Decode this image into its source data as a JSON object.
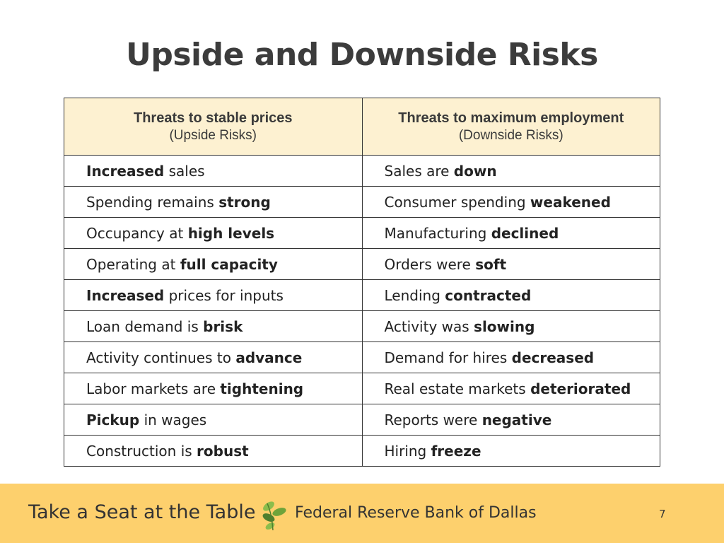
{
  "title": "Upside and Downside Risks",
  "table": {
    "headers": [
      {
        "main": "Threats to stable prices",
        "sub": "(Upside Risks)"
      },
      {
        "main": "Threats to maximum employment",
        "sub": "(Downside Risks)"
      }
    ],
    "rows": [
      [
        {
          "pre": "",
          "bold": "Increased",
          "post": " sales"
        },
        {
          "pre": "Sales are ",
          "bold": "down",
          "post": ""
        }
      ],
      [
        {
          "pre": "Spending remains ",
          "bold": "strong",
          "post": ""
        },
        {
          "pre": "Consumer spending ",
          "bold": "weakened",
          "post": ""
        }
      ],
      [
        {
          "pre": "Occupancy at ",
          "bold": "high levels",
          "post": ""
        },
        {
          "pre": "Manufacturing ",
          "bold": "declined",
          "post": ""
        }
      ],
      [
        {
          "pre": "Operating at ",
          "bold": "full capacity",
          "post": ""
        },
        {
          "pre": "Orders were ",
          "bold": "soft",
          "post": ""
        }
      ],
      [
        {
          "pre": "",
          "bold": "Increased",
          "post": " prices for inputs"
        },
        {
          "pre": "Lending ",
          "bold": "contracted",
          "post": ""
        }
      ],
      [
        {
          "pre": "Loan demand is ",
          "bold": "brisk",
          "post": ""
        },
        {
          "pre": "Activity was ",
          "bold": "slowing",
          "post": ""
        }
      ],
      [
        {
          "pre": "Activity continues to ",
          "bold": "advance",
          "post": ""
        },
        {
          "pre": "Demand for hires ",
          "bold": "decreased",
          "post": ""
        }
      ],
      [
        {
          "pre": "Labor markets are ",
          "bold": "tightening",
          "post": ""
        },
        {
          "pre": "Real estate markets ",
          "bold": "deteriorated",
          "post": ""
        }
      ],
      [
        {
          "pre": "",
          "bold": "Pickup",
          "post": " in wages"
        },
        {
          "pre": "Reports were ",
          "bold": "negative",
          "post": ""
        }
      ],
      [
        {
          "pre": "Construction is ",
          "bold": "robust",
          "post": ""
        },
        {
          "pre": "Hiring ",
          "bold": "freeze",
          "post": ""
        }
      ]
    ]
  },
  "footer": {
    "tagline": "Take a Seat at the Table",
    "bank": "Federal Reserve Bank of Dallas",
    "page_number": "7",
    "logo_icon": "leaf-logo-icon",
    "background_color": "#fdd06d"
  },
  "colors": {
    "header_fill": "#fdf1d1",
    "title_text": "#3c3c3c",
    "leaf_light": "#8bbd4c",
    "leaf_dark": "#4f7f2e"
  }
}
